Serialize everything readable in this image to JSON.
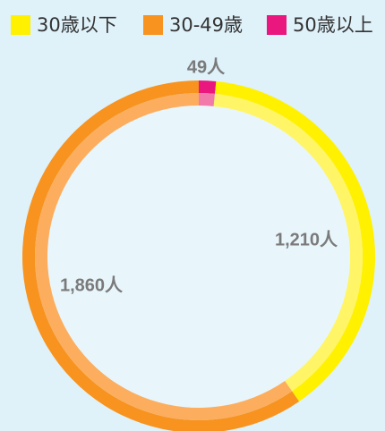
{
  "chart_data": {
    "type": "donut",
    "categories": [
      "30歳以下",
      "30-49歳",
      "50歳以上"
    ],
    "values": [
      1210,
      1860,
      49
    ],
    "value_labels": [
      "1,210人",
      "1,860人",
      "49人"
    ],
    "colors": [
      "#fff100",
      "#f7931e",
      "#e9177e"
    ],
    "inner_colors": [
      "#fff566",
      "#fcae5e",
      "#f27aab"
    ],
    "legend": "top"
  }
}
